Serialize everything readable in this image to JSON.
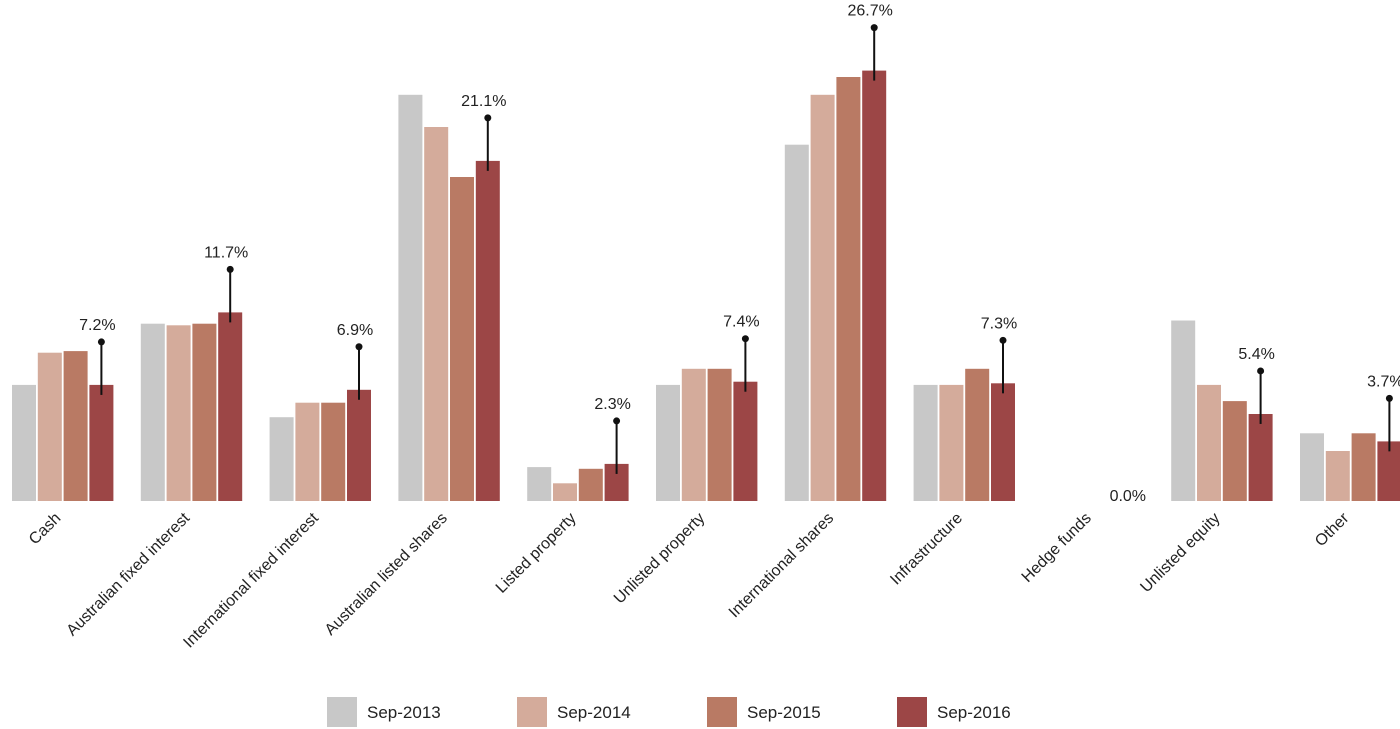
{
  "chart_data": {
    "type": "bar",
    "title": "",
    "xlabel": "",
    "ylabel": "",
    "ylim": [
      0,
      30
    ],
    "grid": false,
    "legend_position": "bottom",
    "categories": [
      "Cash",
      "Australian fixed interest",
      "International fixed interest",
      "Australian listed shares",
      "Listed property",
      "Unlisted property",
      "International shares",
      "Infrastructure",
      "Hedge funds",
      "Unlisted equity",
      "Other"
    ],
    "series": [
      {
        "name": "Sep-2013",
        "color": "#c8c8c8",
        "values": [
          7.2,
          11.0,
          5.2,
          25.2,
          2.1,
          7.2,
          22.1,
          7.2,
          0.0,
          11.2,
          4.2
        ]
      },
      {
        "name": "Sep-2014",
        "color": "#d4ab9b",
        "values": [
          9.2,
          10.9,
          6.1,
          23.2,
          1.1,
          8.2,
          25.2,
          7.2,
          0.0,
          7.2,
          3.1
        ]
      },
      {
        "name": "Sep-2015",
        "color": "#b97a64",
        "values": [
          9.3,
          11.0,
          6.1,
          20.1,
          2.0,
          8.2,
          26.3,
          8.2,
          0.0,
          6.2,
          4.2
        ]
      },
      {
        "name": "Sep-2016",
        "color": "#9c4646",
        "values": [
          7.2,
          11.7,
          6.9,
          21.1,
          2.3,
          7.4,
          26.7,
          7.3,
          0.0,
          5.4,
          3.7
        ]
      }
    ],
    "data_labels": [
      "7.2%",
      "11.7%",
      "6.9%",
      "21.1%",
      "2.3%",
      "7.4%",
      "26.7%",
      "7.3%",
      "0.0%",
      "5.4%",
      "3.7%"
    ]
  }
}
